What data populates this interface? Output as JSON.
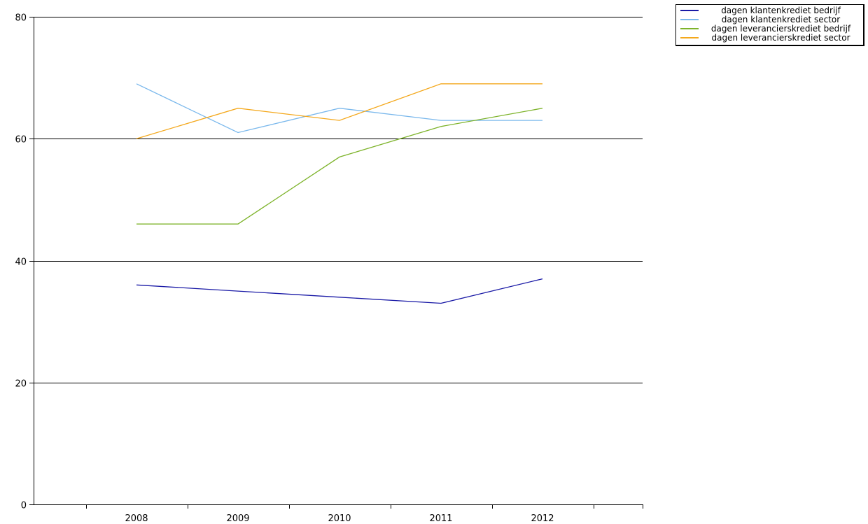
{
  "chart_data": {
    "type": "line",
    "title": "",
    "xlabel": "",
    "ylabel": "",
    "x": [
      "2008",
      "2009",
      "2010",
      "2011",
      "2012"
    ],
    "ylim": [
      0,
      80
    ],
    "yticks": [
      0,
      20,
      40,
      60,
      80
    ],
    "grid": "horizontal",
    "legend_position": "top-right",
    "series": [
      {
        "name": "dagen klantenkrediet bedrijf",
        "color": "#1a1aa6",
        "values": [
          36,
          35,
          34,
          33,
          37
        ]
      },
      {
        "name": "dagen klantenkrediet sector",
        "color": "#7ab8ec",
        "values": [
          69,
          61,
          65,
          63,
          63
        ]
      },
      {
        "name": "dagen leverancierskrediet bedrijf",
        "color": "#7db32a",
        "values": [
          46,
          46,
          57,
          62,
          65
        ]
      },
      {
        "name": "dagen leverancierskrediet sector",
        "color": "#f4a81c",
        "values": [
          60,
          65,
          63,
          69,
          69
        ]
      }
    ]
  }
}
